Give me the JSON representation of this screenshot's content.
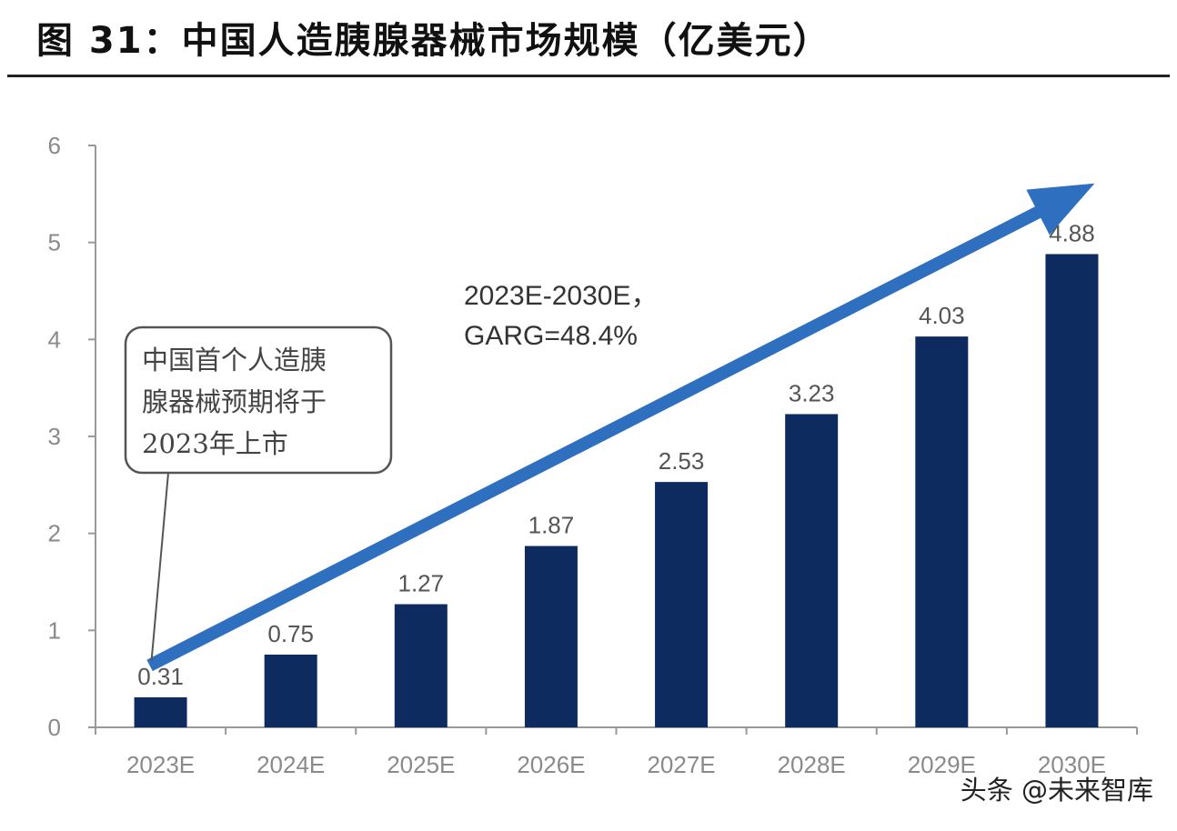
{
  "figure": {
    "title": "图 31：中国人造胰腺器械市场规模（亿美元）"
  },
  "watermark": "头条 @未来智库",
  "colors": {
    "bar": "#0d2b5e",
    "arrow": "#2f6fc0",
    "axis": "#999999"
  },
  "chart_data": {
    "type": "bar",
    "categories": [
      "2023E",
      "2024E",
      "2025E",
      "2026E",
      "2027E",
      "2028E",
      "2029E",
      "2030E"
    ],
    "values": [
      0.31,
      0.75,
      1.27,
      1.87,
      2.53,
      3.23,
      4.03,
      4.88
    ],
    "value_labels": [
      "0.31",
      "0.75",
      "1.27",
      "1.87",
      "2.53",
      "3.23",
      "4.03",
      "4.88"
    ],
    "ylim": [
      0,
      6
    ],
    "yticks": [
      "0",
      "1",
      "2",
      "3",
      "4",
      "5",
      "6"
    ],
    "grid": false,
    "annotations": {
      "cagr": [
        "2023E-2030E，",
        "GARG=48.4%"
      ],
      "note": [
        "中国首个人造胰",
        "腺器械预期将于",
        "2023年上市"
      ]
    }
  }
}
